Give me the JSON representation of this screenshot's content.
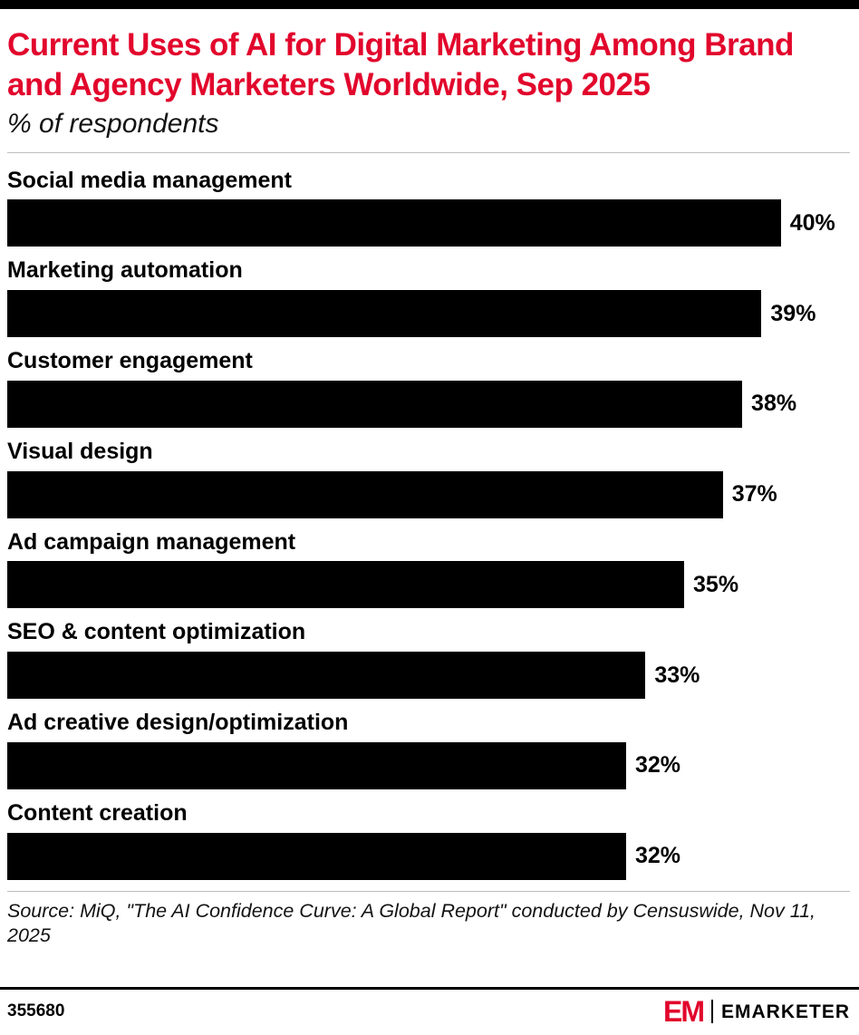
{
  "colors": {
    "accent_red": "#e2062c",
    "bar": "#000000",
    "divider_gray": "#bdbdbd"
  },
  "header": {
    "title": "Current Uses of AI for Digital Marketing Among Brand and Agency Marketers Worldwide, Sep 2025",
    "subtitle": "% of respondents"
  },
  "chart_data": {
    "type": "bar",
    "orientation": "horizontal",
    "title": "Current Uses of AI for Digital Marketing Among Brand and Agency Marketers Worldwide, Sep 2025",
    "subtitle": "% of respondents",
    "xlabel": "",
    "ylabel": "",
    "axis_max": 40,
    "grid": false,
    "legend": false,
    "value_suffix": "%",
    "categories": [
      "Social media management",
      "Marketing automation",
      "Customer engagement",
      "Visual design",
      "Ad campaign management",
      "SEO & content optimization",
      "Ad creative design/optimization",
      "Content creation"
    ],
    "values": [
      40,
      39,
      38,
      37,
      35,
      33,
      32,
      32
    ]
  },
  "source": "Source: MiQ, \"The AI Confidence Curve: A Global Report\" conducted by Censuswide, Nov 11, 2025",
  "footer": {
    "chart_id": "355680",
    "brand": {
      "logo_text": "EM",
      "name": "EMARKETER"
    }
  }
}
